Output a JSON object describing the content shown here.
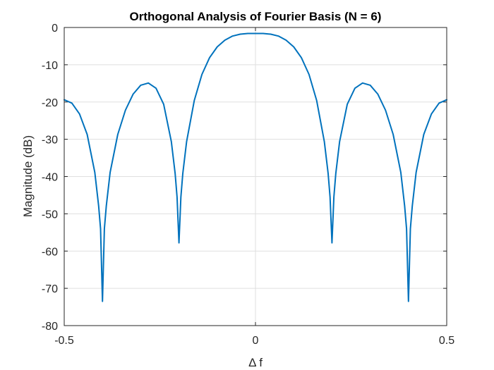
{
  "chart_data": {
    "type": "line",
    "title": "Orthogonal Analysis of Fourier Basis (N = 6)",
    "xlabel": "Δ f",
    "ylabel": "Magnitude (dB)",
    "xlim": [
      -0.5,
      0.5
    ],
    "ylim": [
      -80,
      0
    ],
    "xticks": [
      -0.5,
      0,
      0.5
    ],
    "xtick_labels": [
      "-0.5",
      "0",
      "0.5"
    ],
    "yticks": [
      0,
      -10,
      -20,
      -30,
      -40,
      -50,
      -60,
      -70,
      -80
    ],
    "ytick_labels": [
      "0",
      "-10",
      "-20",
      "-30",
      "-40",
      "-50",
      "-60",
      "-70",
      "-80"
    ],
    "grid": true,
    "line_color": "#0072BD",
    "series": [
      {
        "x": [
          -0.5,
          -0.48,
          -0.46,
          -0.44,
          -0.42,
          -0.41,
          -0.405,
          -0.4,
          -0.395,
          -0.39,
          -0.38,
          -0.36,
          -0.34,
          -0.32,
          -0.3,
          -0.28,
          -0.26,
          -0.24,
          -0.22,
          -0.21,
          -0.205,
          -0.2,
          -0.195,
          -0.19,
          -0.18,
          -0.16,
          -0.14,
          -0.12,
          -0.1,
          -0.08,
          -0.06,
          -0.04,
          -0.02,
          0,
          0.02,
          0.04,
          0.06,
          0.08,
          0.1,
          0.12,
          0.14,
          0.16,
          0.18,
          0.19,
          0.195,
          0.2,
          0.205,
          0.21,
          0.22,
          0.24,
          0.26,
          0.28,
          0.3,
          0.32,
          0.34,
          0.36,
          0.38,
          0.39,
          0.395,
          0.4,
          0.405,
          0.41,
          0.42,
          0.44,
          0.46,
          0.48,
          0.5
        ],
        "y": [
          -19.4,
          -20.3,
          -23.2,
          -28.7,
          -38.9,
          -47.9,
          -54.0,
          -73.5,
          -54.0,
          -47.9,
          -38.9,
          -28.7,
          -22.2,
          -17.9,
          -15.5,
          -14.9,
          -16.3,
          -20.6,
          -30.6,
          -39.2,
          -45.5,
          -57.8,
          -45.5,
          -39.2,
          -30.6,
          -19.6,
          -12.6,
          -8.1,
          -5.2,
          -3.4,
          -2.3,
          -1.8,
          -1.6,
          -1.6,
          -1.6,
          -1.8,
          -2.3,
          -3.4,
          -5.2,
          -8.1,
          -12.6,
          -19.6,
          -30.6,
          -39.2,
          -45.5,
          -57.8,
          -45.5,
          -39.2,
          -30.6,
          -20.6,
          -16.3,
          -14.9,
          -15.5,
          -17.9,
          -22.2,
          -28.7,
          -38.9,
          -47.9,
          -54.0,
          -73.5,
          -54.0,
          -47.9,
          -38.9,
          -28.7,
          -23.2,
          -20.3,
          -19.4
        ]
      }
    ]
  }
}
